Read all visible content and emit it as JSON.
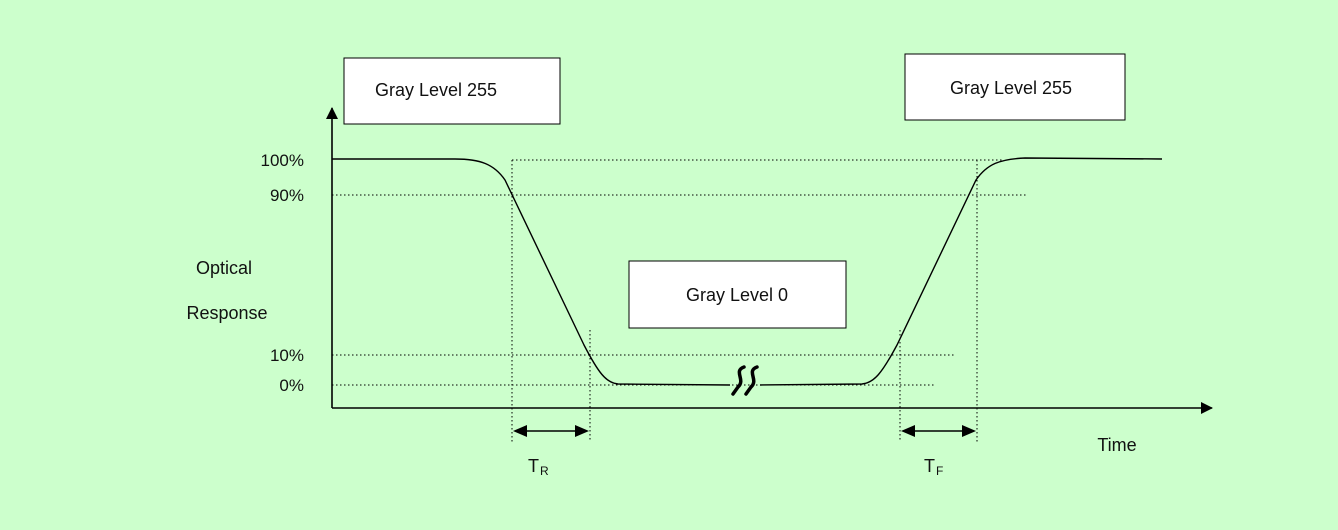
{
  "diagram": {
    "title": "",
    "colors": {
      "background": "#ccffcc",
      "line": "#000000",
      "box_fill": "#ffffff"
    },
    "boxes": {
      "gray_255_left": "Gray Level 255",
      "gray_255_right": "Gray Level 255",
      "gray_0": "Gray Level 0"
    },
    "y_axis": {
      "label_line1": "Optical",
      "label_line2": "Response",
      "ticks": [
        "100%",
        "90%",
        "10%",
        "0%"
      ]
    },
    "x_axis": {
      "label": "Time"
    },
    "intervals": {
      "rise": {
        "main": "T",
        "sub": "R"
      },
      "fall": {
        "main": "T",
        "sub": "F"
      }
    },
    "break_symbol": "axis-break-icon"
  }
}
